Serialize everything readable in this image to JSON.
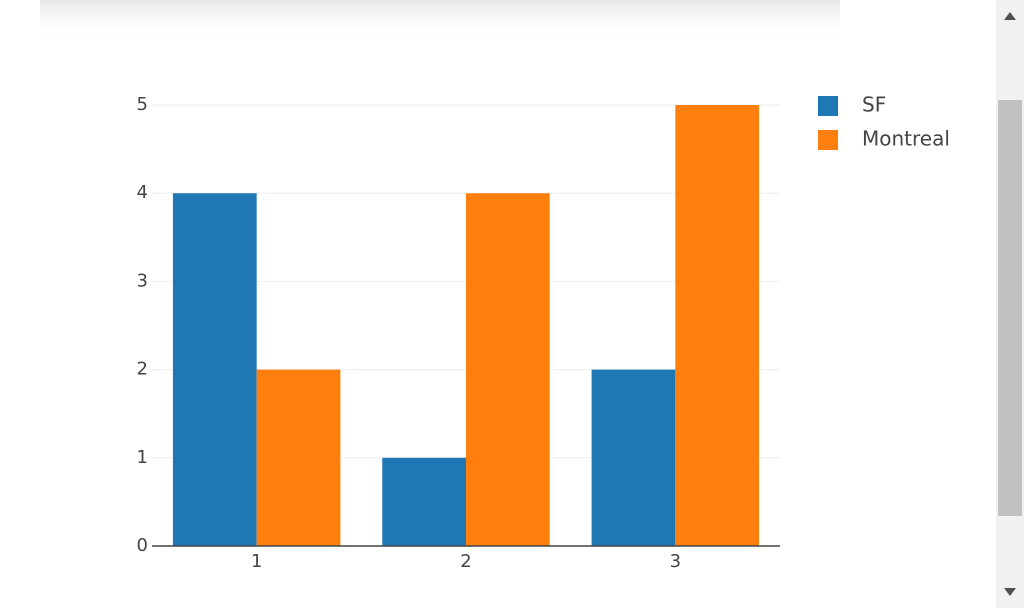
{
  "chart_data": {
    "type": "bar",
    "x": [
      1,
      2,
      3
    ],
    "xlim": [
      0.5,
      3.5
    ],
    "xticks": [
      1,
      2,
      3
    ],
    "series": [
      {
        "name": "SF",
        "color": "#1f77b4",
        "values": [
          4,
          1,
          2
        ]
      },
      {
        "name": "Montreal",
        "color": "#ff7f0e",
        "values": [
          2,
          4,
          5
        ]
      }
    ],
    "ylim": [
      0,
      5.25
    ],
    "yticks": [
      0,
      1,
      2,
      3,
      4,
      5
    ],
    "grid": true,
    "legend": "right"
  }
}
